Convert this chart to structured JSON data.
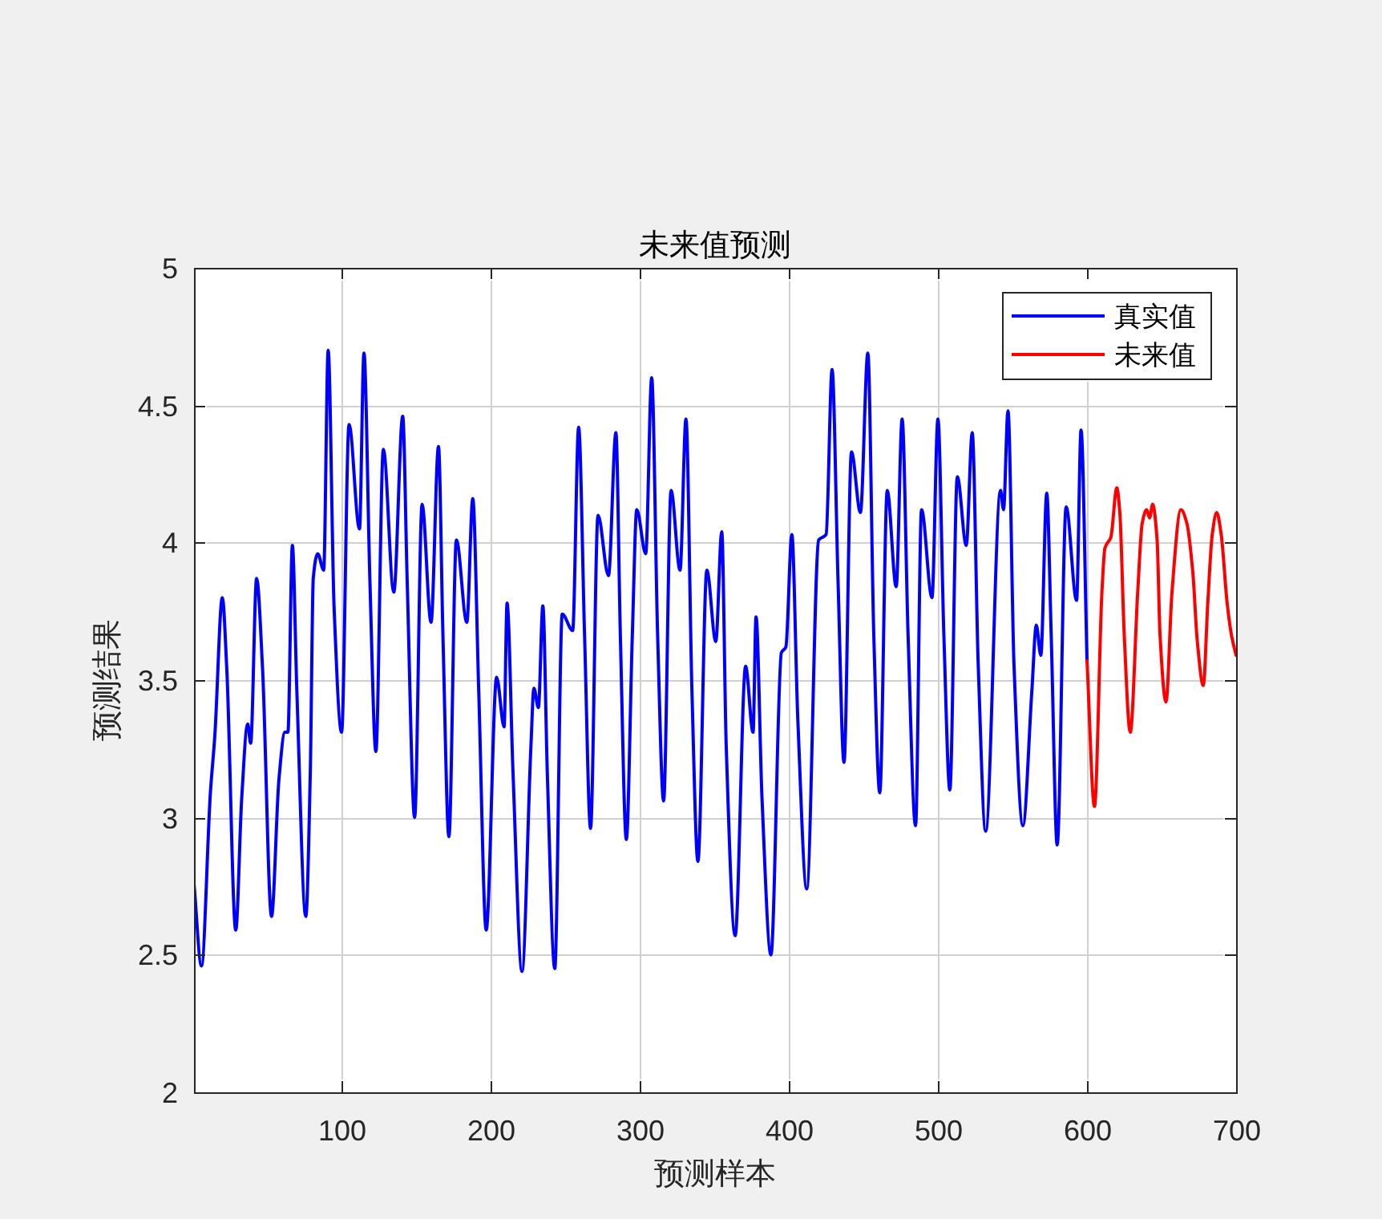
{
  "chart_data": {
    "type": "line",
    "title": "未来值预测",
    "xlabel": "预测样本",
    "ylabel": "预测结果",
    "xlim": [
      1,
      700
    ],
    "xticks": [
      100,
      200,
      300,
      400,
      500,
      600,
      700
    ],
    "ylim": [
      2,
      5
    ],
    "yticks": [
      2,
      2.5,
      3,
      3.5,
      4,
      4.5,
      5
    ],
    "grid": true,
    "legend": "top right",
    "marker": "none",
    "line_style": "solid",
    "series": [
      {
        "name": "真实值",
        "color": "#0000ff",
        "x": [
          1,
          6,
          12,
          15,
          20,
          23,
          29,
          33,
          37,
          39,
          43,
          47,
          53,
          58,
          62,
          64,
          67,
          70,
          76,
          79,
          81,
          84,
          88,
          91,
          95,
          100,
          105,
          112,
          115,
          119,
          123,
          128,
          135,
          141,
          144,
          149,
          154,
          160,
          165,
          168,
          172,
          177,
          184,
          188,
          192,
          197,
          204,
          209,
          211,
          215,
          221,
          227,
          229,
          232,
          235,
          238,
          243,
          248,
          255,
          259,
          263,
          267,
          272,
          279,
          284,
          287,
          291,
          295,
          298,
          304,
          308,
          312,
          316,
          321,
          327,
          331,
          335,
          339,
          345,
          351,
          355,
          358,
          364,
          371,
          376,
          378,
          382,
          388,
          395,
          398,
          402,
          406,
          412,
          420,
          425,
          429,
          433,
          437,
          442,
          448,
          453,
          457,
          461,
          466,
          472,
          476,
          480,
          485,
          489,
          496,
          500,
          504,
          508,
          513,
          519,
          523,
          527,
          532,
          542,
          544,
          547,
          551,
          557,
          563,
          566,
          569,
          573,
          576,
          580,
          586,
          593,
          596,
          600
        ],
        "values": [
          2.76,
          2.46,
          3.09,
          3.3,
          3.8,
          3.54,
          2.59,
          3.07,
          3.34,
          3.27,
          3.87,
          3.54,
          2.64,
          3.14,
          3.31,
          3.31,
          3.99,
          3.46,
          2.64,
          3.16,
          3.87,
          3.96,
          3.9,
          4.7,
          3.76,
          3.31,
          4.43,
          4.05,
          4.69,
          3.86,
          3.24,
          4.34,
          3.82,
          4.46,
          3.86,
          3.0,
          4.14,
          3.71,
          4.35,
          3.66,
          2.93,
          4.01,
          3.71,
          4.16,
          3.46,
          2.59,
          3.51,
          3.33,
          3.78,
          3.16,
          2.44,
          3.26,
          3.47,
          3.4,
          3.77,
          3.16,
          2.45,
          3.74,
          3.68,
          4.42,
          3.66,
          2.96,
          4.1,
          3.88,
          4.4,
          3.66,
          2.92,
          3.66,
          4.12,
          3.96,
          4.6,
          3.66,
          3.06,
          4.19,
          3.9,
          4.45,
          3.46,
          2.84,
          3.9,
          3.64,
          4.04,
          3.26,
          2.57,
          3.55,
          3.31,
          3.73,
          3.07,
          2.5,
          3.6,
          3.62,
          4.03,
          3.36,
          2.74,
          4.01,
          4.03,
          4.63,
          3.86,
          3.2,
          4.33,
          4.11,
          4.69,
          3.66,
          3.09,
          4.19,
          3.84,
          4.45,
          3.66,
          2.97,
          4.12,
          3.8,
          4.45,
          3.66,
          3.1,
          4.24,
          3.99,
          4.4,
          3.56,
          2.95,
          4.19,
          4.12,
          4.48,
          3.56,
          2.97,
          3.46,
          3.7,
          3.59,
          4.18,
          3.66,
          2.9,
          4.13,
          3.79,
          4.41,
          3.57
        ]
      },
      {
        "name": "未来值",
        "color": "#ff0000",
        "x": [
          600,
          605,
          610,
          612,
          616,
          620,
          622,
          625,
          629,
          634,
          637,
          640,
          642,
          644,
          647,
          649,
          653,
          657,
          663,
          667,
          671,
          674,
          678,
          681,
          684,
          687,
          690,
          694,
          697,
          700
        ],
        "values": [
          3.57,
          3.04,
          3.82,
          3.98,
          4.02,
          4.2,
          4.11,
          3.66,
          3.31,
          3.82,
          4.07,
          4.12,
          4.09,
          4.14,
          4.01,
          3.66,
          3.42,
          3.82,
          4.12,
          4.07,
          3.89,
          3.64,
          3.48,
          3.78,
          4.03,
          4.11,
          4.03,
          3.78,
          3.66,
          3.59
        ]
      }
    ]
  }
}
